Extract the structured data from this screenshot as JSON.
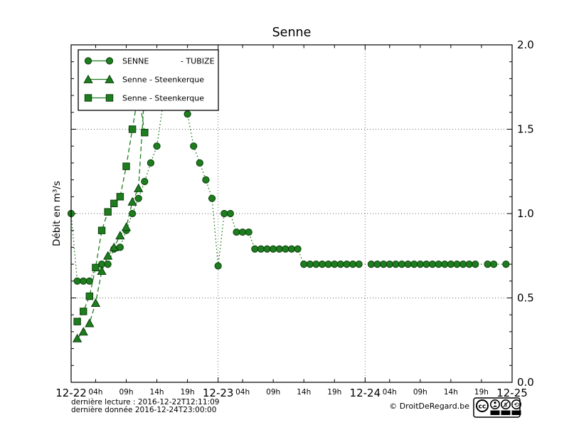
{
  "title": "Senne",
  "ylabel": "Débit en m³/s",
  "footer": {
    "last_reading": "dernière lecture : 2016-12-22T12:11:09",
    "last_data": "dernière donnée  2016-12-24T23:00:00",
    "copyright": "© DroitDeRegard.be",
    "license_badge": "CC BY-NC-SA",
    "badge_circle_label": "cc",
    "badge_labels": [
      "BY",
      "NC",
      "SA"
    ]
  },
  "colors": {
    "series_green": "#1e7d1e",
    "marker_fill": "#1e7d1e",
    "marker_edge": "#0a400a",
    "grid": "#666666",
    "axis": "#000000",
    "background": "#ffffff"
  },
  "legend": {
    "entries": [
      {
        "label_left": "SENNE",
        "label_right": "- TUBIZE",
        "marker": "circle"
      },
      {
        "label_left": "Senne - Steenkerque",
        "label_right": "",
        "marker": "triangle"
      },
      {
        "label_left": "Senne - Steenkerque",
        "label_right": "",
        "marker": "square"
      }
    ],
    "position": "upper left"
  },
  "chart_data": {
    "type": "line",
    "title": "Senne",
    "xlabel": "",
    "ylabel": "Débit en m³/s",
    "x_unit": "hours since 2016-12-22T00:00",
    "x_range_hours": [
      0,
      72
    ],
    "ylim": [
      0.0,
      2.0
    ],
    "yticks": [
      0.0,
      0.5,
      1.0,
      1.5,
      2.0
    ],
    "ytick_labels": [
      "0.0",
      "0.5",
      "1.0",
      "1.5",
      "2.0"
    ],
    "ytick_side": "right",
    "y_minor_step": 0.1,
    "day_ticks": [
      {
        "hour": 0,
        "label": "12-22"
      },
      {
        "hour": 24,
        "label": "12-23"
      },
      {
        "hour": 48,
        "label": "12-24"
      },
      {
        "hour": 72,
        "label": "12-25"
      }
    ],
    "hour_ticks": [
      {
        "hour": 4,
        "label": "04h"
      },
      {
        "hour": 9,
        "label": "09h"
      },
      {
        "hour": 14,
        "label": "14h"
      },
      {
        "hour": 19,
        "label": "19h"
      },
      {
        "hour": 28,
        "label": "04h"
      },
      {
        "hour": 33,
        "label": "09h"
      },
      {
        "hour": 38,
        "label": "14h"
      },
      {
        "hour": 43,
        "label": "19h"
      },
      {
        "hour": 52,
        "label": "04h"
      },
      {
        "hour": 57,
        "label": "09h"
      },
      {
        "hour": 62,
        "label": "14h"
      },
      {
        "hour": 67,
        "label": "19h"
      }
    ],
    "grid_vertical_hours": [
      24,
      48
    ],
    "grid_horizontal_values": [
      0.5,
      1.0,
      1.5
    ],
    "series": [
      {
        "name": "SENNE - TUBIZE",
        "marker": "circle",
        "linestyle": "dotted",
        "points": [
          [
            0,
            1.0
          ],
          [
            1,
            0.6
          ],
          [
            2,
            0.6
          ],
          [
            3,
            0.6
          ],
          [
            4,
            0.68
          ],
          [
            5,
            0.7
          ],
          [
            6,
            0.7
          ],
          [
            7,
            0.79
          ],
          [
            8,
            0.8
          ],
          [
            9,
            0.9
          ],
          [
            10,
            1.0
          ],
          [
            11,
            1.09
          ],
          [
            12,
            1.19
          ],
          [
            13,
            1.3
          ],
          [
            14,
            1.4
          ],
          [
            15,
            1.65
          ],
          [
            16,
            1.72
          ],
          [
            17,
            1.74
          ],
          [
            18,
            1.68
          ],
          [
            19,
            1.59
          ],
          [
            20,
            1.4
          ],
          [
            21,
            1.3
          ],
          [
            22,
            1.2
          ],
          [
            23,
            1.09
          ],
          [
            24,
            0.69
          ],
          [
            25,
            1.0
          ],
          [
            26,
            1.0
          ],
          [
            27,
            0.89
          ],
          [
            28,
            0.89
          ],
          [
            29,
            0.89
          ],
          [
            30,
            0.79
          ],
          [
            31,
            0.79
          ],
          [
            32,
            0.79
          ],
          [
            33,
            0.79
          ],
          [
            34,
            0.79
          ],
          [
            35,
            0.79
          ],
          [
            36,
            0.79
          ],
          [
            37,
            0.79
          ],
          [
            38,
            0.7
          ],
          [
            39,
            0.7
          ],
          [
            40,
            0.7
          ],
          [
            41,
            0.7
          ],
          [
            42,
            0.7
          ],
          [
            43,
            0.7
          ],
          [
            44,
            0.7
          ],
          [
            45,
            0.7
          ],
          [
            46,
            0.7
          ],
          [
            47,
            0.7
          ],
          [
            49,
            0.7
          ],
          [
            50,
            0.7
          ],
          [
            51,
            0.7
          ],
          [
            52,
            0.7
          ],
          [
            53,
            0.7
          ],
          [
            54,
            0.7
          ],
          [
            55,
            0.7
          ],
          [
            56,
            0.7
          ],
          [
            57,
            0.7
          ],
          [
            58,
            0.7
          ],
          [
            59,
            0.7
          ],
          [
            60,
            0.7
          ],
          [
            61,
            0.7
          ],
          [
            62,
            0.7
          ],
          [
            63,
            0.7
          ],
          [
            64,
            0.7
          ],
          [
            65,
            0.7
          ],
          [
            66,
            0.7
          ],
          [
            68,
            0.7
          ],
          [
            69,
            0.7
          ],
          [
            71,
            0.7
          ]
        ]
      },
      {
        "name": "Senne - Steenkerque",
        "marker": "triangle",
        "linestyle": "dashed",
        "points": [
          [
            1,
            0.26
          ],
          [
            2,
            0.3
          ],
          [
            3,
            0.35
          ],
          [
            4,
            0.47
          ],
          [
            5,
            0.66
          ],
          [
            6,
            0.75
          ],
          [
            7,
            0.8
          ],
          [
            8,
            0.87
          ],
          [
            9,
            0.92
          ],
          [
            10,
            1.07
          ],
          [
            11,
            1.15
          ],
          [
            12,
            1.72
          ]
        ]
      },
      {
        "name": "Senne - Steenkerque",
        "marker": "square",
        "linestyle": "dashed",
        "points": [
          [
            1,
            0.36
          ],
          [
            2,
            0.42
          ],
          [
            3,
            0.51
          ],
          [
            4,
            0.68
          ],
          [
            5,
            0.9
          ],
          [
            6,
            1.01
          ],
          [
            7,
            1.06
          ],
          [
            8,
            1.1
          ],
          [
            9,
            1.28
          ],
          [
            10,
            1.5
          ],
          [
            11,
            1.72
          ],
          [
            12,
            1.48
          ]
        ]
      }
    ],
    "legend_position": "upper left",
    "grid": true
  }
}
